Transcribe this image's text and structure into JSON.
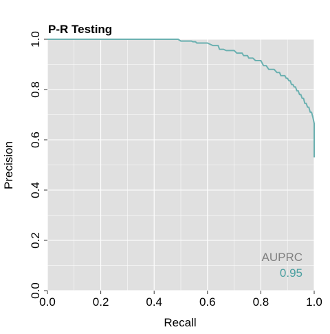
{
  "chart_data": {
    "type": "line",
    "title": "P-R Testing",
    "xlabel": "Recall",
    "ylabel": "Precision",
    "xlim": [
      0,
      1
    ],
    "ylim": [
      0,
      1
    ],
    "x_ticks": [
      "0.0",
      "0.2",
      "0.4",
      "0.6",
      "0.8",
      "1.0"
    ],
    "y_ticks": [
      "0.0",
      "0.2",
      "0.4",
      "0.6",
      "0.8",
      "1.0"
    ],
    "grid": true,
    "background": "#e0e0e0",
    "line_color": "#6ab0b0",
    "series": [
      {
        "x": [
          0.0,
          0.49,
          0.5,
          0.54,
          0.545,
          0.555,
          0.56,
          0.6,
          0.62,
          0.64,
          0.645,
          0.66,
          0.67,
          0.7,
          0.71,
          0.73,
          0.735,
          0.75,
          0.755,
          0.77,
          0.78,
          0.8,
          0.81,
          0.82,
          0.83,
          0.85,
          0.86,
          0.87,
          0.875,
          0.89,
          0.895,
          0.9,
          0.905,
          0.91,
          0.915,
          0.92,
          0.925,
          0.93,
          0.935,
          0.94,
          0.945,
          0.95,
          0.955,
          0.96,
          0.965,
          0.97,
          0.975,
          0.98,
          0.985,
          0.99,
          0.995,
          1.0,
          1.0
        ],
        "y": [
          1.0,
          1.0,
          0.993,
          0.993,
          0.99,
          0.99,
          0.985,
          0.985,
          0.975,
          0.975,
          0.96,
          0.96,
          0.955,
          0.955,
          0.945,
          0.945,
          0.935,
          0.935,
          0.925,
          0.925,
          0.915,
          0.915,
          0.895,
          0.895,
          0.88,
          0.88,
          0.868,
          0.868,
          0.855,
          0.855,
          0.845,
          0.845,
          0.835,
          0.835,
          0.82,
          0.82,
          0.81,
          0.81,
          0.795,
          0.795,
          0.78,
          0.78,
          0.765,
          0.765,
          0.745,
          0.745,
          0.73,
          0.73,
          0.71,
          0.71,
          0.69,
          0.665,
          0.53
        ]
      }
    ],
    "annotations": {
      "label": "AUPRC",
      "value": "0.95",
      "label_color": "#7f7f7f",
      "value_color": "#4a9fa0"
    }
  }
}
